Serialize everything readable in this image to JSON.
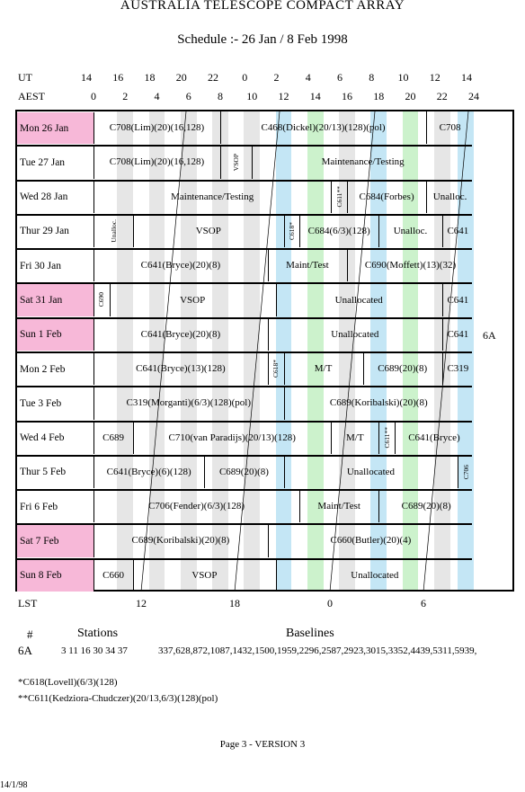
{
  "header": {
    "title": "AUSTRALIA TELESCOPE COMPACT ARRAY",
    "subtitle": "Schedule :- 26 Jan / 8 Feb 1998"
  },
  "axes": {
    "ut_label": "UT",
    "aest_label": "AEST",
    "lst_label": "LST",
    "ut_ticks": [
      "14",
      "16",
      "18",
      "20",
      "22",
      "0",
      "2",
      "4",
      "6",
      "8",
      "10",
      "12",
      "14"
    ],
    "aest_ticks": [
      "0",
      "2",
      "4",
      "6",
      "8",
      "10",
      "12",
      "14",
      "16",
      "18",
      "20",
      "22",
      "24"
    ],
    "lst_ticks": [
      "12",
      "18",
      "0",
      "6"
    ]
  },
  "config_label": "6A",
  "rows": [
    {
      "day": "Mon  26  Jan",
      "weekend": true,
      "cells": [
        {
          "t": "C708(Lim)(20)(16,128)",
          "a": 0,
          "b": 8
        },
        {
          "t": "C468(Dickel)(20/13)(128)(pol)",
          "a": 8,
          "b": 21
        },
        {
          "t": "C708",
          "a": 21,
          "b": 24
        }
      ]
    },
    {
      "day": "Tue  27  Jan",
      "weekend": false,
      "cells": [
        {
          "t": "C708(Lim)(20)(16,128)",
          "a": 0,
          "b": 8
        },
        {
          "t": "VSOP",
          "a": 8,
          "b": 10,
          "v": true
        },
        {
          "t": "Maintenance/Testing",
          "a": 10,
          "b": 24
        }
      ]
    },
    {
      "day": "Wed  28  Jan",
      "weekend": false,
      "cells": [
        {
          "t": "Maintenance/Testing",
          "a": 0,
          "b": 15
        },
        {
          "t": "C611**",
          "a": 15,
          "b": 16,
          "v": true
        },
        {
          "t": "C684(Forbes)",
          "a": 16,
          "b": 21
        },
        {
          "t": "Unalloc.",
          "a": 21,
          "b": 24
        }
      ]
    },
    {
      "day": "Thur  29  Jan",
      "weekend": false,
      "cells": [
        {
          "t": "Unalloc.",
          "a": 0,
          "b": 2.5,
          "v": true
        },
        {
          "t": "VSOP",
          "a": 2.5,
          "b": 12
        },
        {
          "t": "C618*",
          "a": 12,
          "b": 13,
          "v": true
        },
        {
          "t": "C684(6/3)(128)",
          "a": 13,
          "b": 18
        },
        {
          "t": "Unalloc.",
          "a": 18,
          "b": 22
        },
        {
          "t": "C641",
          "a": 22,
          "b": 24
        }
      ]
    },
    {
      "day": "Fri    30  Jan",
      "weekend": false,
      "cells": [
        {
          "t": "C641(Bryce)(20)(8)",
          "a": 0,
          "b": 11
        },
        {
          "t": "Maint/Test",
          "a": 11,
          "b": 16
        },
        {
          "t": "C690(Moffett)(13)(32)",
          "a": 16,
          "b": 24
        }
      ]
    },
    {
      "day": "Sat   31  Jan",
      "weekend": true,
      "cells": [
        {
          "t": "C690",
          "a": 0,
          "b": 1,
          "v": true
        },
        {
          "t": "VSOP",
          "a": 1,
          "b": 11.5
        },
        {
          "t": "Unallocated",
          "a": 11.5,
          "b": 22
        },
        {
          "t": "C641",
          "a": 22,
          "b": 24
        }
      ]
    },
    {
      "day": "Sun    1  Feb",
      "weekend": true,
      "cells": [
        {
          "t": "C641(Bryce)(20)(8)",
          "a": 0,
          "b": 11
        },
        {
          "t": "Unallocated",
          "a": 11,
          "b": 22
        },
        {
          "t": "C641",
          "a": 22,
          "b": 24
        }
      ]
    },
    {
      "day": "Mon   2  Feb",
      "weekend": false,
      "cells": [
        {
          "t": "C641(Bryce)(13)(128)",
          "a": 0,
          "b": 11
        },
        {
          "t": "C618*",
          "a": 11,
          "b": 12,
          "v": true
        },
        {
          "t": "M/T",
          "a": 12,
          "b": 17
        },
        {
          "t": "C689(20)(8)",
          "a": 17,
          "b": 22
        },
        {
          "t": "C319",
          "a": 22,
          "b": 24
        }
      ]
    },
    {
      "day": "Tue    3  Feb",
      "weekend": false,
      "cells": [
        {
          "t": "C319(Morganti)(6/3)(128)(pol)",
          "a": 0,
          "b": 12
        },
        {
          "t": "C689(Koribalski)(20)(8)",
          "a": 12,
          "b": 24
        }
      ]
    },
    {
      "day": "Wed   4  Feb",
      "weekend": false,
      "cells": [
        {
          "t": "C689",
          "a": 0,
          "b": 2.5
        },
        {
          "t": "C710(van Paradijs)(20/13)(128)",
          "a": 2.5,
          "b": 15
        },
        {
          "t": "M/T",
          "a": 15,
          "b": 18
        },
        {
          "t": "C611**",
          "a": 18,
          "b": 19,
          "v": true
        },
        {
          "t": "C641(Bryce)",
          "a": 19,
          "b": 24
        }
      ]
    },
    {
      "day": "Thur   5  Feb",
      "weekend": false,
      "cells": [
        {
          "t": "C641(Bryce)(6)(128)",
          "a": 0,
          "b": 7
        },
        {
          "t": "C689(20)(8)",
          "a": 7,
          "b": 12
        },
        {
          "t": "Unallocated",
          "a": 12,
          "b": 23
        },
        {
          "t": "C706",
          "a": 23,
          "b": 24,
          "v": true
        }
      ]
    },
    {
      "day": "Fri     6  Feb",
      "weekend": false,
      "cells": [
        {
          "t": "C706(Fender)(6/3)(128)",
          "a": 0,
          "b": 13
        },
        {
          "t": "Maint/Test",
          "a": 13,
          "b": 18
        },
        {
          "t": "C689(20)(8)",
          "a": 18,
          "b": 24
        }
      ]
    },
    {
      "day": "Sat    7  Feb",
      "weekend": true,
      "cells": [
        {
          "t": "C689(Koribalski)(20)(8)",
          "a": 0,
          "b": 11
        },
        {
          "t": "C660(Butler)(20)(4)",
          "a": 11,
          "b": 24
        }
      ]
    },
    {
      "day": "Sun    8  Feb",
      "weekend": true,
      "cells": [
        {
          "t": "C660",
          "a": 0,
          "b": 2.5
        },
        {
          "t": "VSOP",
          "a": 2.5,
          "b": 11.5
        },
        {
          "t": "Unallocated",
          "a": 11.5,
          "b": 24
        }
      ]
    }
  ],
  "stations": {
    "hash_label": "#",
    "stations_label": "Stations",
    "baselines_label": "Baselines",
    "config": "6A",
    "list": "3 11 16 30 34 37",
    "baselines": "337,628,872,1087,1432,1500,1959,2296,2587,2923,3015,3352,4439,5311,5939,"
  },
  "footnotes": [
    "*C618(Lovell)(6/3)(128)",
    "**C611(Kedziora-Chudczer)(20/13,6/3)(128)(pol)"
  ],
  "footer": {
    "page": "Page 3 - VERSION 3",
    "date": "14/1/98"
  },
  "colors": {
    "weekend": "#f7b8d8",
    "gray": "#e6e6e6",
    "blue": "#c4e6f5",
    "green": "#ccf2cc"
  }
}
